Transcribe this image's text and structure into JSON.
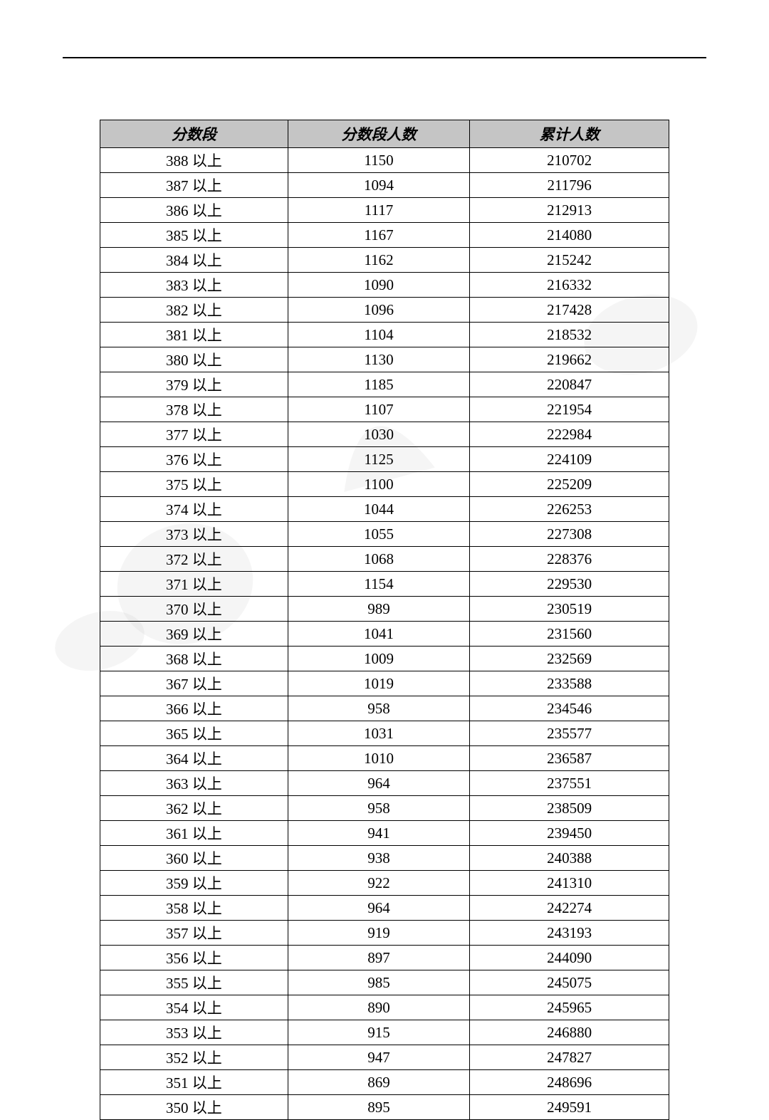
{
  "table": {
    "columns": [
      "分数段",
      "分数段人数",
      "累计人数"
    ],
    "column_widths": [
      "33%",
      "32%",
      "35%"
    ],
    "header_background": "#c5c5c5",
    "border_color": "#000000",
    "font_size": 21,
    "rows": [
      {
        "score": "388 以上",
        "count": "1150",
        "cumulative": "210702"
      },
      {
        "score": "387 以上",
        "count": "1094",
        "cumulative": "211796"
      },
      {
        "score": "386 以上",
        "count": "1117",
        "cumulative": "212913"
      },
      {
        "score": "385 以上",
        "count": "1167",
        "cumulative": "214080"
      },
      {
        "score": "384 以上",
        "count": "1162",
        "cumulative": "215242"
      },
      {
        "score": "383 以上",
        "count": "1090",
        "cumulative": "216332"
      },
      {
        "score": "382 以上",
        "count": "1096",
        "cumulative": "217428"
      },
      {
        "score": "381 以上",
        "count": "1104",
        "cumulative": "218532"
      },
      {
        "score": "380 以上",
        "count": "1130",
        "cumulative": "219662"
      },
      {
        "score": "379 以上",
        "count": "1185",
        "cumulative": "220847"
      },
      {
        "score": "378 以上",
        "count": "1107",
        "cumulative": "221954"
      },
      {
        "score": "377 以上",
        "count": "1030",
        "cumulative": "222984"
      },
      {
        "score": "376 以上",
        "count": "1125",
        "cumulative": "224109"
      },
      {
        "score": "375 以上",
        "count": "1100",
        "cumulative": "225209"
      },
      {
        "score": "374 以上",
        "count": "1044",
        "cumulative": "226253"
      },
      {
        "score": "373 以上",
        "count": "1055",
        "cumulative": "227308"
      },
      {
        "score": "372 以上",
        "count": "1068",
        "cumulative": "228376"
      },
      {
        "score": "371 以上",
        "count": "1154",
        "cumulative": "229530"
      },
      {
        "score": "370 以上",
        "count": "989",
        "cumulative": "230519"
      },
      {
        "score": "369 以上",
        "count": "1041",
        "cumulative": "231560"
      },
      {
        "score": "368 以上",
        "count": "1009",
        "cumulative": "232569"
      },
      {
        "score": "367 以上",
        "count": "1019",
        "cumulative": "233588"
      },
      {
        "score": "366 以上",
        "count": "958",
        "cumulative": "234546"
      },
      {
        "score": "365 以上",
        "count": "1031",
        "cumulative": "235577"
      },
      {
        "score": "364 以上",
        "count": "1010",
        "cumulative": "236587"
      },
      {
        "score": "363 以上",
        "count": "964",
        "cumulative": "237551"
      },
      {
        "score": "362 以上",
        "count": "958",
        "cumulative": "238509"
      },
      {
        "score": "361 以上",
        "count": "941",
        "cumulative": "239450"
      },
      {
        "score": "360 以上",
        "count": "938",
        "cumulative": "240388"
      },
      {
        "score": "359 以上",
        "count": "922",
        "cumulative": "241310"
      },
      {
        "score": "358 以上",
        "count": "964",
        "cumulative": "242274"
      },
      {
        "score": "357 以上",
        "count": "919",
        "cumulative": "243193"
      },
      {
        "score": "356 以上",
        "count": "897",
        "cumulative": "244090"
      },
      {
        "score": "355 以上",
        "count": "985",
        "cumulative": "245075"
      },
      {
        "score": "354 以上",
        "count": "890",
        "cumulative": "245965"
      },
      {
        "score": "353 以上",
        "count": "915",
        "cumulative": "246880"
      },
      {
        "score": "352 以上",
        "count": "947",
        "cumulative": "247827"
      },
      {
        "score": "351 以上",
        "count": "869",
        "cumulative": "248696"
      },
      {
        "score": "350 以上",
        "count": "895",
        "cumulative": "249591"
      }
    ]
  }
}
